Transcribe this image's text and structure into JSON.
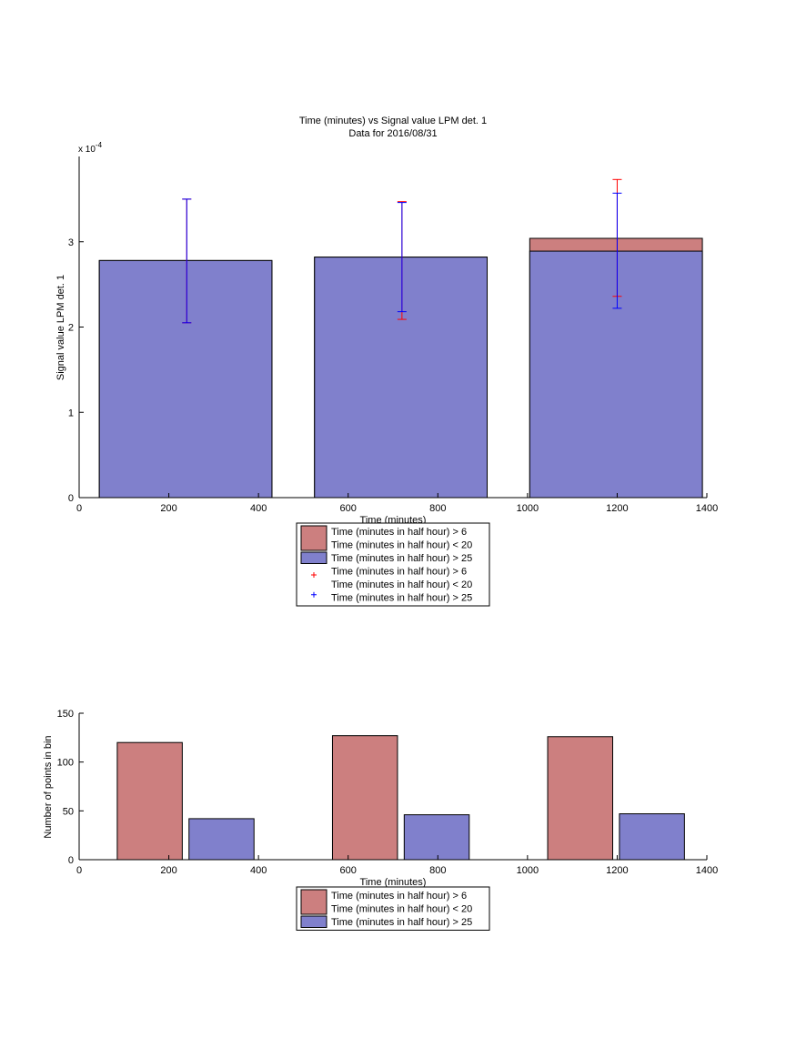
{
  "chart_data": [
    {
      "type": "bar",
      "title": "Time (minutes) vs Signal value LPM det. 1",
      "subtitle": "Data for 2016/08/31",
      "xlabel": "Time (minutes)",
      "ylabel": "Signal value LPM det. 1",
      "y_scale_label": "x 10",
      "y_scale_exponent": "-4",
      "xlim": [
        0,
        1400
      ],
      "ylim": [
        0,
        4
      ],
      "xticks": [
        "0",
        "200",
        "400",
        "600",
        "800",
        "1000",
        "1200",
        "1400"
      ],
      "yticks": [
        "0",
        "1",
        "2",
        "3"
      ],
      "grid": false,
      "bars": [
        {
          "x_start": 45,
          "x_end": 430,
          "center": 240,
          "series1": 2.78,
          "series2": 2.78
        },
        {
          "x_start": 525,
          "x_end": 910,
          "center": 720,
          "series1": 2.82,
          "series2": 2.82
        },
        {
          "x_start": 1005,
          "x_end": 1390,
          "center": 1200,
          "series1": 3.04,
          "series2": 2.89
        }
      ],
      "errorbars": [
        {
          "center": 240,
          "series1": {
            "low": 2.05,
            "high": 3.5
          },
          "series2": {
            "low": 2.05,
            "high": 3.5
          }
        },
        {
          "center": 720,
          "series1": {
            "low": 2.09,
            "high": 3.47
          },
          "series2": {
            "low": 2.18,
            "high": 3.46
          }
        },
        {
          "center": 1200,
          "series1": {
            "low": 2.36,
            "high": 3.73
          },
          "series2": {
            "low": 2.22,
            "high": 3.57
          }
        }
      ],
      "legend": {
        "position": "below",
        "entries": [
          {
            "kind": "patch",
            "color": "#cc7f7f",
            "lines": [
              "Time (minutes in half hour) > 6",
              "Time (minutes in half hour) < 20"
            ]
          },
          {
            "kind": "patch",
            "color": "#8080cc",
            "lines": [
              "Time (minutes in half hour) > 25"
            ]
          },
          {
            "kind": "marker",
            "color": "#ff0000",
            "lines": [
              "Time (minutes in half hour) > 6",
              "Time (minutes in half hour) < 20"
            ]
          },
          {
            "kind": "marker",
            "color": "#0000ff",
            "lines": [
              "Time (minutes in half hour) > 25"
            ]
          }
        ]
      }
    },
    {
      "type": "bar",
      "xlabel": "Time (minutes)",
      "ylabel": "Number of points in bin",
      "xlim": [
        0,
        1400
      ],
      "ylim": [
        0,
        150
      ],
      "xticks": [
        "0",
        "200",
        "400",
        "600",
        "800",
        "1000",
        "1200",
        "1400"
      ],
      "yticks": [
        "0",
        "50",
        "100",
        "150"
      ],
      "grid": false,
      "bars": [
        {
          "series": 1,
          "x_start": 85,
          "x_end": 230,
          "value": 120
        },
        {
          "series": 2,
          "x_start": 245,
          "x_end": 390,
          "value": 42
        },
        {
          "series": 1,
          "x_start": 565,
          "x_end": 710,
          "value": 127
        },
        {
          "series": 2,
          "x_start": 725,
          "x_end": 870,
          "value": 46
        },
        {
          "series": 1,
          "x_start": 1045,
          "x_end": 1190,
          "value": 126
        },
        {
          "series": 2,
          "x_start": 1205,
          "x_end": 1350,
          "value": 47
        }
      ],
      "legend": {
        "position": "below",
        "entries": [
          {
            "kind": "patch",
            "color": "#cc7f7f",
            "lines": [
              "Time (minutes in half hour) > 6",
              "Time (minutes in half hour) < 20"
            ]
          },
          {
            "kind": "patch",
            "color": "#8080cc",
            "lines": [
              "Time (minutes in half hour) > 25"
            ]
          }
        ]
      }
    }
  ],
  "colors": {
    "series1_fill": "#cc7f7f",
    "series2_fill": "#8080cc",
    "series1_err": "#ff0000",
    "series2_err": "#0000ff"
  }
}
